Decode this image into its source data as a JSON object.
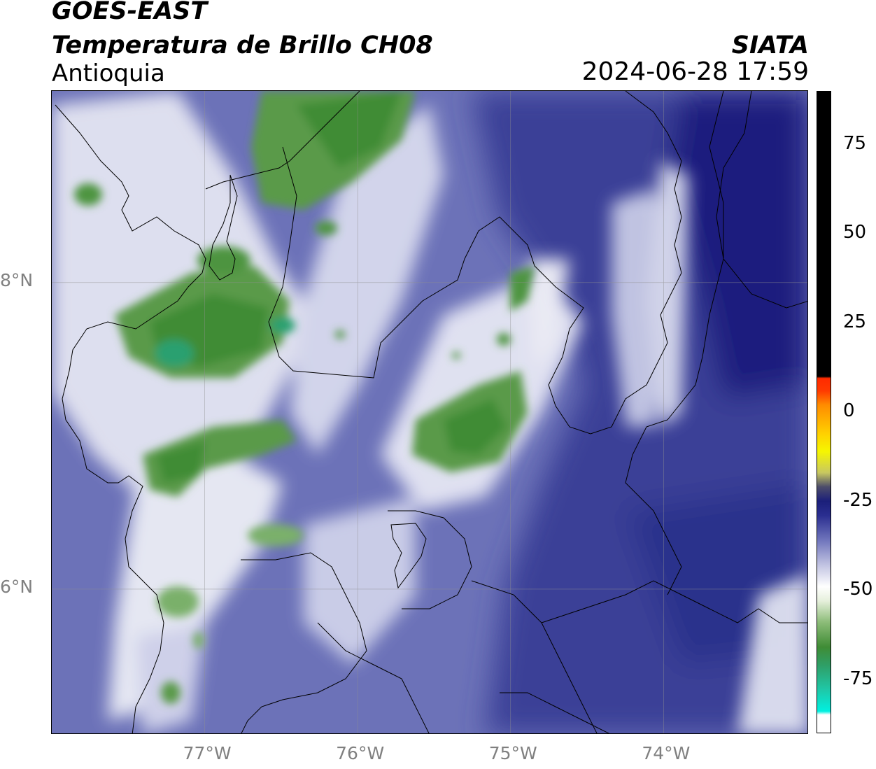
{
  "header": {
    "satellite": "GOES-EAST",
    "product": "Temperatura de Brillo CH08",
    "region": "Antioquia",
    "agency": "SIATA",
    "timestamp": "2024-06-28 17:59"
  },
  "map": {
    "lon_range": [
      -78.0,
      -73.05
    ],
    "lat_range": [
      5.05,
      9.25
    ],
    "gridlines": true,
    "lon_ticks": [
      {
        "value": -77,
        "label": "77°W"
      },
      {
        "value": -76,
        "label": "76°W"
      },
      {
        "value": -75,
        "label": "75°W"
      },
      {
        "value": -74,
        "label": "74°W"
      }
    ],
    "lat_ticks": [
      {
        "value": 8,
        "label": "8°N"
      },
      {
        "value": 6,
        "label": "6°N"
      }
    ],
    "colors": {
      "background_blue": "#6c72b8",
      "deep_blue": "#1a1f7e",
      "white_cloud": "#f0f0f6",
      "green": "#3f8c35",
      "teal": "#2aa070",
      "border": "#000000"
    }
  },
  "colorbar": {
    "range": [
      -90,
      90
    ],
    "ticks": [
      {
        "value": 75,
        "label": "75"
      },
      {
        "value": 50,
        "label": "50"
      },
      {
        "value": 25,
        "label": "25"
      },
      {
        "value": 0,
        "label": "0"
      },
      {
        "value": -25,
        "label": "-25"
      },
      {
        "value": -50,
        "label": "-50"
      },
      {
        "value": -75,
        "label": "-75"
      }
    ]
  }
}
